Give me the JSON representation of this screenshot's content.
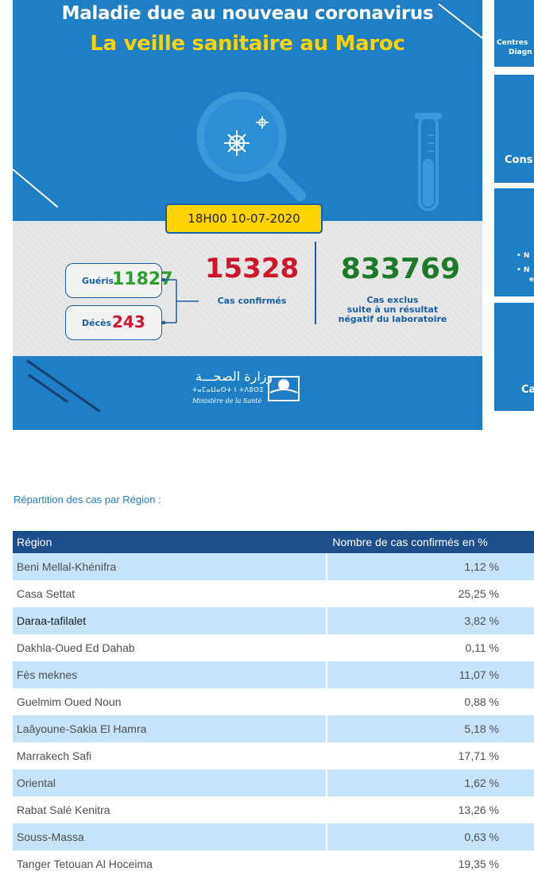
{
  "infographic": {
    "title_line1": "Maladie due au nouveau coronavirus",
    "title_line2": "La veille sanitaire au Maroc",
    "date_time": "18H00  10-07-2020",
    "gueris_label": "Guéris",
    "gueris_value": "11827",
    "deces_label": "Décès",
    "deces_value": "243",
    "confirmed_value": "15328",
    "confirmed_label": "Cas confirmés",
    "excluded_value": "833769",
    "excluded_label_1": "Cas exclus",
    "excluded_label_2": "suite à un résultat",
    "excluded_label_3": "négatif du laboratoire",
    "ministry_ar": "وزارة الصحـــة",
    "ministry_tifinagh": "ⵜⴰⵎⴰⵡⴰⵙⵜ ⵏ ⵜⴷⵓⵙⵉ",
    "ministry_fr": "Ministère de la Santé",
    "colors": {
      "panel_blue": "#1e7fc4",
      "accent_yellow": "#ffd400",
      "confirmed_red": "#d0162c",
      "recovered_green": "#2ba02b",
      "excluded_green": "#1c7a2a"
    }
  },
  "side_panels": {
    "panel1_line1": "Centres",
    "panel1_line2": "Diagn",
    "panel2_text": "Cons",
    "panel3_bullet1": "• N",
    "panel3_bullet2": "• N",
    "panel3_bullet2_cont": "e",
    "panel4_text": "Ca"
  },
  "regions": {
    "heading": "Répartition des cas par Région :",
    "columns": [
      "Région",
      "Nombre de cas confirmés en %"
    ],
    "rows": [
      {
        "name": "Beni Mellal-Khénifra",
        "pct": "1,12 %"
      },
      {
        "name": "Casa Settat",
        "pct": "25,25 %"
      },
      {
        "name": "Daraa-tafilalet",
        "pct": "3,82 %"
      },
      {
        "name": "Dakhla-Oued Ed Dahab",
        "pct": "0,11 %"
      },
      {
        "name": "Fès meknes",
        "pct": "11,07 %"
      },
      {
        "name": "Guelmim Oued Noun",
        "pct": "0,88 %"
      },
      {
        "name": "Laâyoune-Sakia El Hamra",
        "pct": "5,18 %"
      },
      {
        "name": "Marrakech Safi",
        "pct": "17,71 %"
      },
      {
        "name": "Oriental",
        "pct": "1,62 %"
      },
      {
        "name": "Rabat Salé Kenitra",
        "pct": "13,26 %"
      },
      {
        "name": "Souss-Massa",
        "pct": "0,63 %"
      },
      {
        "name": "Tanger Tetouan Al Hoceima",
        "pct": "19,35 %"
      }
    ]
  }
}
